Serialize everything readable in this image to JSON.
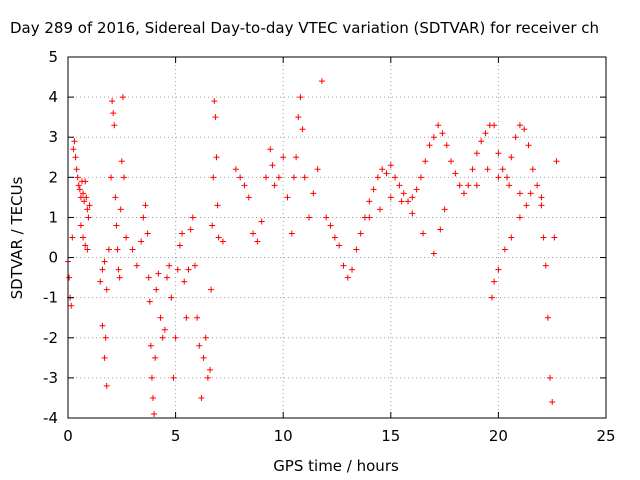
{
  "chart_data": {
    "type": "scatter",
    "title": "Day 289 of 2016, Sidereal Day-to-day VTEC variation (SDTVAR) for receiver ch",
    "xlabel": "GPS time / hours",
    "ylabel": "SDTVAR / TECUs",
    "xlim": [
      0,
      25
    ],
    "ylim": [
      -4,
      5
    ],
    "xticks": [
      "0",
      "5",
      "10",
      "15",
      "20",
      "25"
    ],
    "yticks": [
      "-4",
      "-3",
      "-2",
      "-1",
      "0",
      "1",
      "2",
      "3",
      "4",
      "5"
    ],
    "grid": true,
    "marker": "+",
    "series": [
      {
        "name": "SDTVAR",
        "color": "#ff0000",
        "points": [
          [
            0.0,
            -0.1
          ],
          [
            0.05,
            -0.5
          ],
          [
            0.1,
            -1.0
          ],
          [
            0.15,
            -1.2
          ],
          [
            0.2,
            0.5
          ],
          [
            0.25,
            2.7
          ],
          [
            0.3,
            2.9
          ],
          [
            0.35,
            2.5
          ],
          [
            0.4,
            2.2
          ],
          [
            0.45,
            2.0
          ],
          [
            0.5,
            1.8
          ],
          [
            0.55,
            1.7
          ],
          [
            0.6,
            1.5
          ],
          [
            0.65,
            1.9
          ],
          [
            0.7,
            1.6
          ],
          [
            0.75,
            1.4
          ],
          [
            0.8,
            1.9
          ],
          [
            0.85,
            1.5
          ],
          [
            0.9,
            1.2
          ],
          [
            0.95,
            1.0
          ],
          [
            1.0,
            1.3
          ],
          [
            0.6,
            0.8
          ],
          [
            0.7,
            0.5
          ],
          [
            0.8,
            0.3
          ],
          [
            0.9,
            0.2
          ],
          [
            1.5,
            -0.6
          ],
          [
            1.6,
            -0.3
          ],
          [
            1.7,
            -0.1
          ],
          [
            1.8,
            -0.8
          ],
          [
            1.6,
            -1.7
          ],
          [
            1.7,
            -2.5
          ],
          [
            1.8,
            -3.2
          ],
          [
            1.75,
            -2.0
          ],
          [
            1.9,
            0.2
          ],
          [
            2.0,
            2.0
          ],
          [
            2.05,
            3.9
          ],
          [
            2.1,
            3.6
          ],
          [
            2.15,
            3.3
          ],
          [
            2.2,
            1.5
          ],
          [
            2.25,
            0.8
          ],
          [
            2.3,
            0.2
          ],
          [
            2.35,
            -0.3
          ],
          [
            2.4,
            -0.5
          ],
          [
            2.45,
            1.2
          ],
          [
            2.5,
            2.4
          ],
          [
            2.55,
            4.0
          ],
          [
            2.6,
            2.0
          ],
          [
            2.7,
            0.5
          ],
          [
            3.0,
            0.2
          ],
          [
            3.2,
            -0.2
          ],
          [
            3.4,
            0.4
          ],
          [
            3.5,
            1.0
          ],
          [
            3.6,
            1.3
          ],
          [
            3.7,
            0.6
          ],
          [
            3.75,
            -0.5
          ],
          [
            3.8,
            -1.1
          ],
          [
            3.85,
            -2.2
          ],
          [
            3.9,
            -3.0
          ],
          [
            3.95,
            -3.5
          ],
          [
            4.0,
            -3.9
          ],
          [
            4.05,
            -2.5
          ],
          [
            4.1,
            -0.8
          ],
          [
            4.2,
            -0.4
          ],
          [
            4.3,
            -1.5
          ],
          [
            4.4,
            -2.0
          ],
          [
            4.5,
            -1.8
          ],
          [
            4.6,
            -0.5
          ],
          [
            4.7,
            -0.2
          ],
          [
            4.8,
            -1.0
          ],
          [
            4.9,
            -3.0
          ],
          [
            5.0,
            -2.0
          ],
          [
            5.1,
            -0.3
          ],
          [
            5.2,
            0.3
          ],
          [
            5.3,
            0.6
          ],
          [
            5.4,
            -0.6
          ],
          [
            5.5,
            -1.5
          ],
          [
            5.6,
            -0.3
          ],
          [
            5.7,
            0.7
          ],
          [
            5.8,
            1.0
          ],
          [
            5.9,
            -0.2
          ],
          [
            6.0,
            -1.5
          ],
          [
            6.1,
            -2.2
          ],
          [
            6.2,
            -3.5
          ],
          [
            6.3,
            -2.5
          ],
          [
            6.4,
            -2.0
          ],
          [
            6.5,
            -3.0
          ],
          [
            6.6,
            -2.8
          ],
          [
            6.65,
            -0.8
          ],
          [
            6.7,
            0.8
          ],
          [
            6.75,
            2.0
          ],
          [
            6.8,
            3.9
          ],
          [
            6.85,
            3.5
          ],
          [
            6.9,
            2.5
          ],
          [
            6.95,
            1.3
          ],
          [
            7.0,
            0.5
          ],
          [
            7.2,
            0.4
          ],
          [
            7.8,
            2.2
          ],
          [
            8.0,
            2.0
          ],
          [
            8.2,
            1.8
          ],
          [
            8.4,
            1.5
          ],
          [
            8.6,
            0.6
          ],
          [
            8.8,
            0.4
          ],
          [
            9.0,
            0.9
          ],
          [
            9.2,
            2.0
          ],
          [
            9.4,
            2.7
          ],
          [
            9.5,
            2.3
          ],
          [
            9.6,
            1.8
          ],
          [
            9.8,
            2.0
          ],
          [
            10.0,
            2.5
          ],
          [
            10.2,
            1.5
          ],
          [
            10.4,
            0.6
          ],
          [
            10.5,
            2.0
          ],
          [
            10.6,
            2.5
          ],
          [
            10.7,
            3.5
          ],
          [
            10.8,
            4.0
          ],
          [
            10.9,
            3.2
          ],
          [
            11.0,
            2.0
          ],
          [
            11.2,
            1.0
          ],
          [
            11.4,
            1.6
          ],
          [
            11.6,
            2.2
          ],
          [
            11.8,
            4.4
          ],
          [
            12.0,
            1.0
          ],
          [
            12.2,
            0.8
          ],
          [
            12.4,
            0.5
          ],
          [
            12.6,
            0.3
          ],
          [
            12.8,
            -0.2
          ],
          [
            13.0,
            -0.5
          ],
          [
            13.2,
            -0.3
          ],
          [
            13.4,
            0.2
          ],
          [
            13.6,
            0.6
          ],
          [
            13.8,
            1.0
          ],
          [
            14.0,
            1.4
          ],
          [
            14.2,
            1.7
          ],
          [
            14.4,
            2.0
          ],
          [
            14.6,
            2.2
          ],
          [
            14.8,
            2.1
          ],
          [
            15.0,
            2.3
          ],
          [
            15.2,
            2.0
          ],
          [
            15.4,
            1.8
          ],
          [
            15.6,
            1.6
          ],
          [
            15.8,
            1.4
          ],
          [
            16.0,
            1.5
          ],
          [
            16.2,
            1.7
          ],
          [
            16.4,
            2.0
          ],
          [
            16.6,
            2.4
          ],
          [
            16.8,
            2.8
          ],
          [
            17.0,
            3.0
          ],
          [
            17.2,
            3.3
          ],
          [
            17.4,
            3.1
          ],
          [
            17.6,
            2.8
          ],
          [
            17.8,
            2.4
          ],
          [
            18.0,
            2.1
          ],
          [
            18.2,
            1.8
          ],
          [
            18.4,
            1.6
          ],
          [
            18.6,
            1.8
          ],
          [
            18.8,
            2.2
          ],
          [
            19.0,
            2.6
          ],
          [
            19.2,
            2.9
          ],
          [
            19.4,
            3.1
          ],
          [
            19.6,
            3.3
          ],
          [
            19.8,
            3.3
          ],
          [
            20.0,
            2.6
          ],
          [
            20.2,
            2.2
          ],
          [
            20.4,
            2.0
          ],
          [
            20.6,
            2.5
          ],
          [
            20.8,
            3.0
          ],
          [
            21.0,
            3.3
          ],
          [
            21.2,
            3.2
          ],
          [
            21.4,
            2.8
          ],
          [
            21.6,
            2.2
          ],
          [
            21.8,
            1.8
          ],
          [
            22.0,
            1.5
          ],
          [
            22.1,
            0.5
          ],
          [
            22.2,
            -0.2
          ],
          [
            22.3,
            -1.5
          ],
          [
            22.4,
            -3.0
          ],
          [
            22.5,
            -3.6
          ],
          [
            22.6,
            0.5
          ],
          [
            22.7,
            2.4
          ],
          [
            14.0,
            1.0
          ],
          [
            14.5,
            1.2
          ],
          [
            15.0,
            1.5
          ],
          [
            15.5,
            1.4
          ],
          [
            16.0,
            1.1
          ],
          [
            16.5,
            0.6
          ],
          [
            17.0,
            0.1
          ],
          [
            17.3,
            0.7
          ],
          [
            17.5,
            1.2
          ],
          [
            19.0,
            1.8
          ],
          [
            19.5,
            2.2
          ],
          [
            20.0,
            2.0
          ],
          [
            20.5,
            1.8
          ],
          [
            21.0,
            1.6
          ],
          [
            21.5,
            1.6
          ],
          [
            22.0,
            1.3
          ],
          [
            19.7,
            -1.0
          ],
          [
            19.8,
            -0.6
          ],
          [
            20.0,
            -0.3
          ],
          [
            20.3,
            0.2
          ],
          [
            20.6,
            0.5
          ],
          [
            21.0,
            1.0
          ],
          [
            21.3,
            1.3
          ]
        ]
      }
    ]
  }
}
